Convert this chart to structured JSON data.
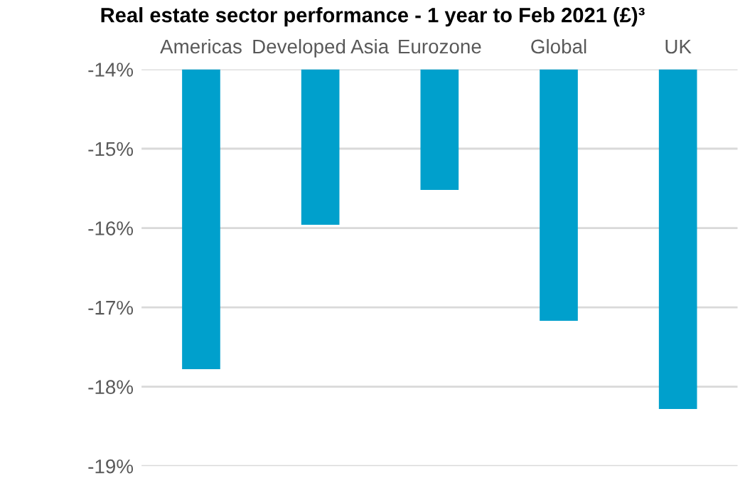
{
  "chart_data": {
    "type": "bar",
    "title": "Real estate sector performance - 1 year to Feb 2021 (£)³",
    "categories": [
      "Americas",
      "Developed Asia",
      "Eurozone",
      "Global",
      "UK"
    ],
    "values": [
      -17.78,
      -15.96,
      -15.52,
      -17.17,
      -18.28
    ],
    "color": "#00a0cc",
    "ylim": [
      -19,
      -14
    ],
    "yticks": [
      {
        "value": -19,
        "label": "-19%"
      },
      {
        "value": -18,
        "label": "-18%"
      },
      {
        "value": -17,
        "label": "-17%"
      },
      {
        "value": -16,
        "label": "-16%"
      },
      {
        "value": -15,
        "label": "-15%"
      },
      {
        "value": -14,
        "label": "-14%"
      }
    ],
    "grid": "y"
  }
}
